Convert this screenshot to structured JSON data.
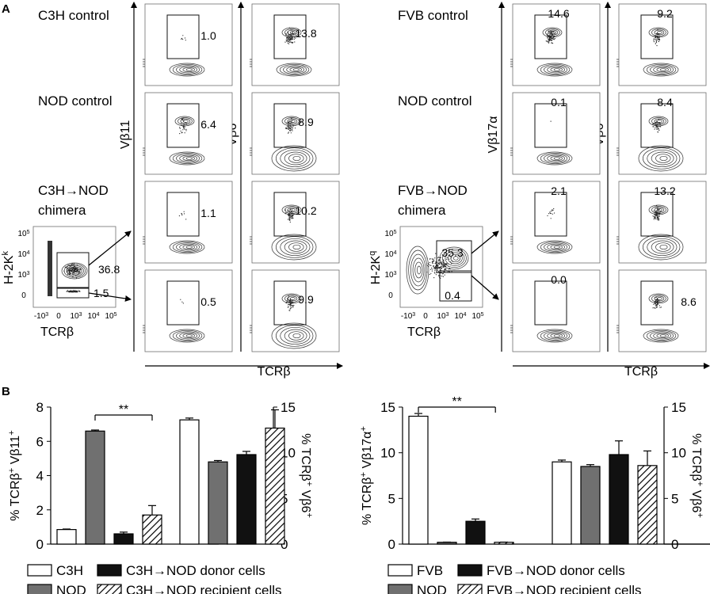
{
  "panel_labels": {
    "a": "A",
    "b": "B"
  },
  "flow": {
    "left": {
      "row_labels": [
        "C3H control",
        "NOD control",
        "C3H→NOD\nchimera"
      ],
      "y_labels": [
        "Vβ11",
        "Vβ6"
      ],
      "x_label": "TCRβ",
      "values": [
        [
          "1.0",
          "13.8"
        ],
        [
          "6.4",
          "8.9"
        ],
        [
          "1.1",
          "10.2"
        ],
        [
          "0.5",
          "9.9"
        ]
      ],
      "scatter": {
        "ylabel": "H-2Kk",
        "xlabel": "TCRβ",
        "gate_values": [
          "36.8",
          "1.5"
        ],
        "y_ticks": [
          "10^5",
          "10^4",
          "10^3",
          "0"
        ],
        "x_ticks": [
          "-10^3",
          "0",
          "10^3",
          "10^4",
          "10^5"
        ]
      }
    },
    "right": {
      "row_labels": [
        "FVB control",
        "NOD control",
        "FVB→NOD\nchimera"
      ],
      "y_labels": [
        "Vβ17α",
        "Vβ6"
      ],
      "x_label": "TCRβ",
      "values": [
        [
          "14.6",
          "9.2"
        ],
        [
          "0.1",
          "8.4"
        ],
        [
          "2.1",
          "13.2"
        ],
        [
          "0.0",
          "8.6"
        ]
      ],
      "scatter": {
        "ylabel": "H-2Kq",
        "xlabel": "TCRβ",
        "gate_values": [
          "35.3",
          "0.4"
        ],
        "y_ticks": [
          "10^5",
          "10^4",
          "10^3",
          "0"
        ],
        "x_ticks": [
          "-10^3",
          "0",
          "10^3",
          "10^4",
          "10^5"
        ]
      }
    }
  },
  "chart_data": [
    {
      "type": "bar",
      "title": "",
      "panel": "B-left",
      "left_axis": {
        "label": "% TCRβ+ Vβ11+",
        "ylim": [
          0,
          8
        ],
        "ticks": [
          0,
          2,
          4,
          6,
          8
        ]
      },
      "right_axis": {
        "label": "% TCRβ+ Vβ6+",
        "ylim": [
          0,
          15
        ],
        "ticks": [
          0,
          5,
          10,
          15
        ]
      },
      "significance": "**",
      "categories": [
        "C3H",
        "NOD",
        "C3H→NOD donor cells",
        "C3H→NOD recipient cells"
      ],
      "groups": [
        {
          "axis": "left",
          "values": [
            0.85,
            6.6,
            0.6,
            1.7
          ],
          "errors": [
            0.03,
            0.06,
            0.1,
            0.55
          ]
        },
        {
          "axis": "right",
          "values": [
            13.6,
            9.0,
            9.8,
            12.7
          ],
          "errors": [
            0.2,
            0.15,
            0.35,
            2.0
          ]
        }
      ],
      "legend": [
        {
          "label": "C3H",
          "style": "white"
        },
        {
          "label": "C3H→NOD donor cells",
          "style": "black"
        },
        {
          "label": "NOD",
          "style": "gray"
        },
        {
          "label": "C3H→NOD recipient cells",
          "style": "hatch"
        }
      ]
    },
    {
      "type": "bar",
      "title": "",
      "panel": "B-right",
      "left_axis": {
        "label": "% TCRβ+ Vβ17α+",
        "ylim": [
          0,
          15
        ],
        "ticks": [
          0,
          5,
          10,
          15
        ]
      },
      "right_axis": {
        "label": "% TCRβ+ Vβ6+",
        "ylim": [
          0,
          15
        ],
        "ticks": [
          0,
          5,
          10,
          15
        ]
      },
      "significance": "**",
      "categories": [
        "FVB",
        "NOD",
        "FVB→NOD donor cells",
        "FVB→NOD recipient cells"
      ],
      "groups": [
        {
          "axis": "left",
          "values": [
            14.0,
            0.2,
            2.5,
            0.2
          ],
          "errors": [
            0.3,
            0.02,
            0.25,
            0.02
          ]
        },
        {
          "axis": "right",
          "values": [
            9.0,
            8.5,
            9.8,
            8.6
          ],
          "errors": [
            0.2,
            0.2,
            1.5,
            1.6
          ]
        }
      ],
      "legend": [
        {
          "label": "FVB",
          "style": "white"
        },
        {
          "label": "FVB→NOD donor cells",
          "style": "black"
        },
        {
          "label": "NOD",
          "style": "gray"
        },
        {
          "label": "FVB→NOD recipient cells",
          "style": "hatch"
        }
      ]
    }
  ]
}
